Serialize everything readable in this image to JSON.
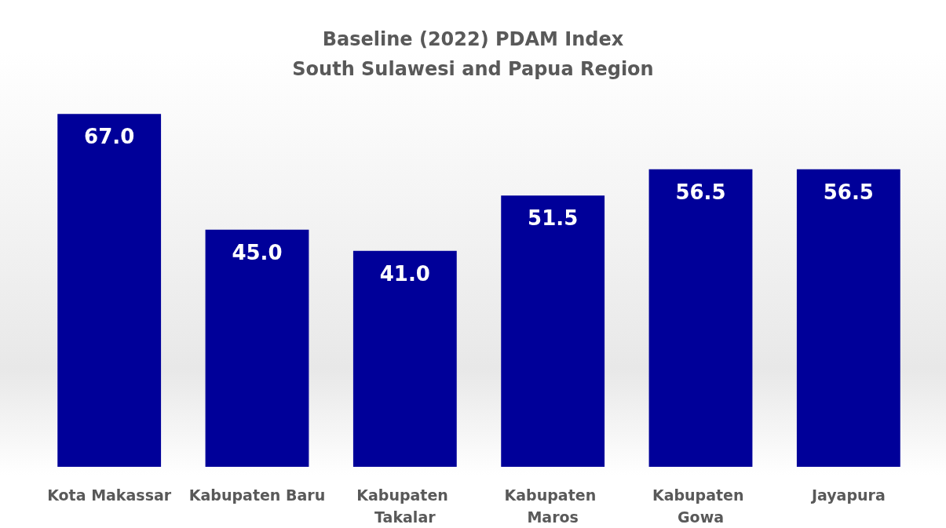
{
  "chart_data": {
    "type": "bar",
    "title": "Baseline (2022) PDAM Index\nSouth Sulawesi and Papua Region",
    "categories": [
      "Kota Makassar",
      "Kabupaten Baru",
      "Kabupaten Takalar",
      "Kabupaten Maros",
      "Kabupaten Gowa",
      "Jayapura"
    ],
    "values": [
      67,
      45,
      41,
      51.5,
      56.5,
      56.5
    ],
    "value_labels": [
      "67.0",
      "45.0",
      "41.0",
      "51.5",
      "56.5",
      "56.5"
    ],
    "color": "#000099",
    "grid": false,
    "tick_labels": "x"
  }
}
